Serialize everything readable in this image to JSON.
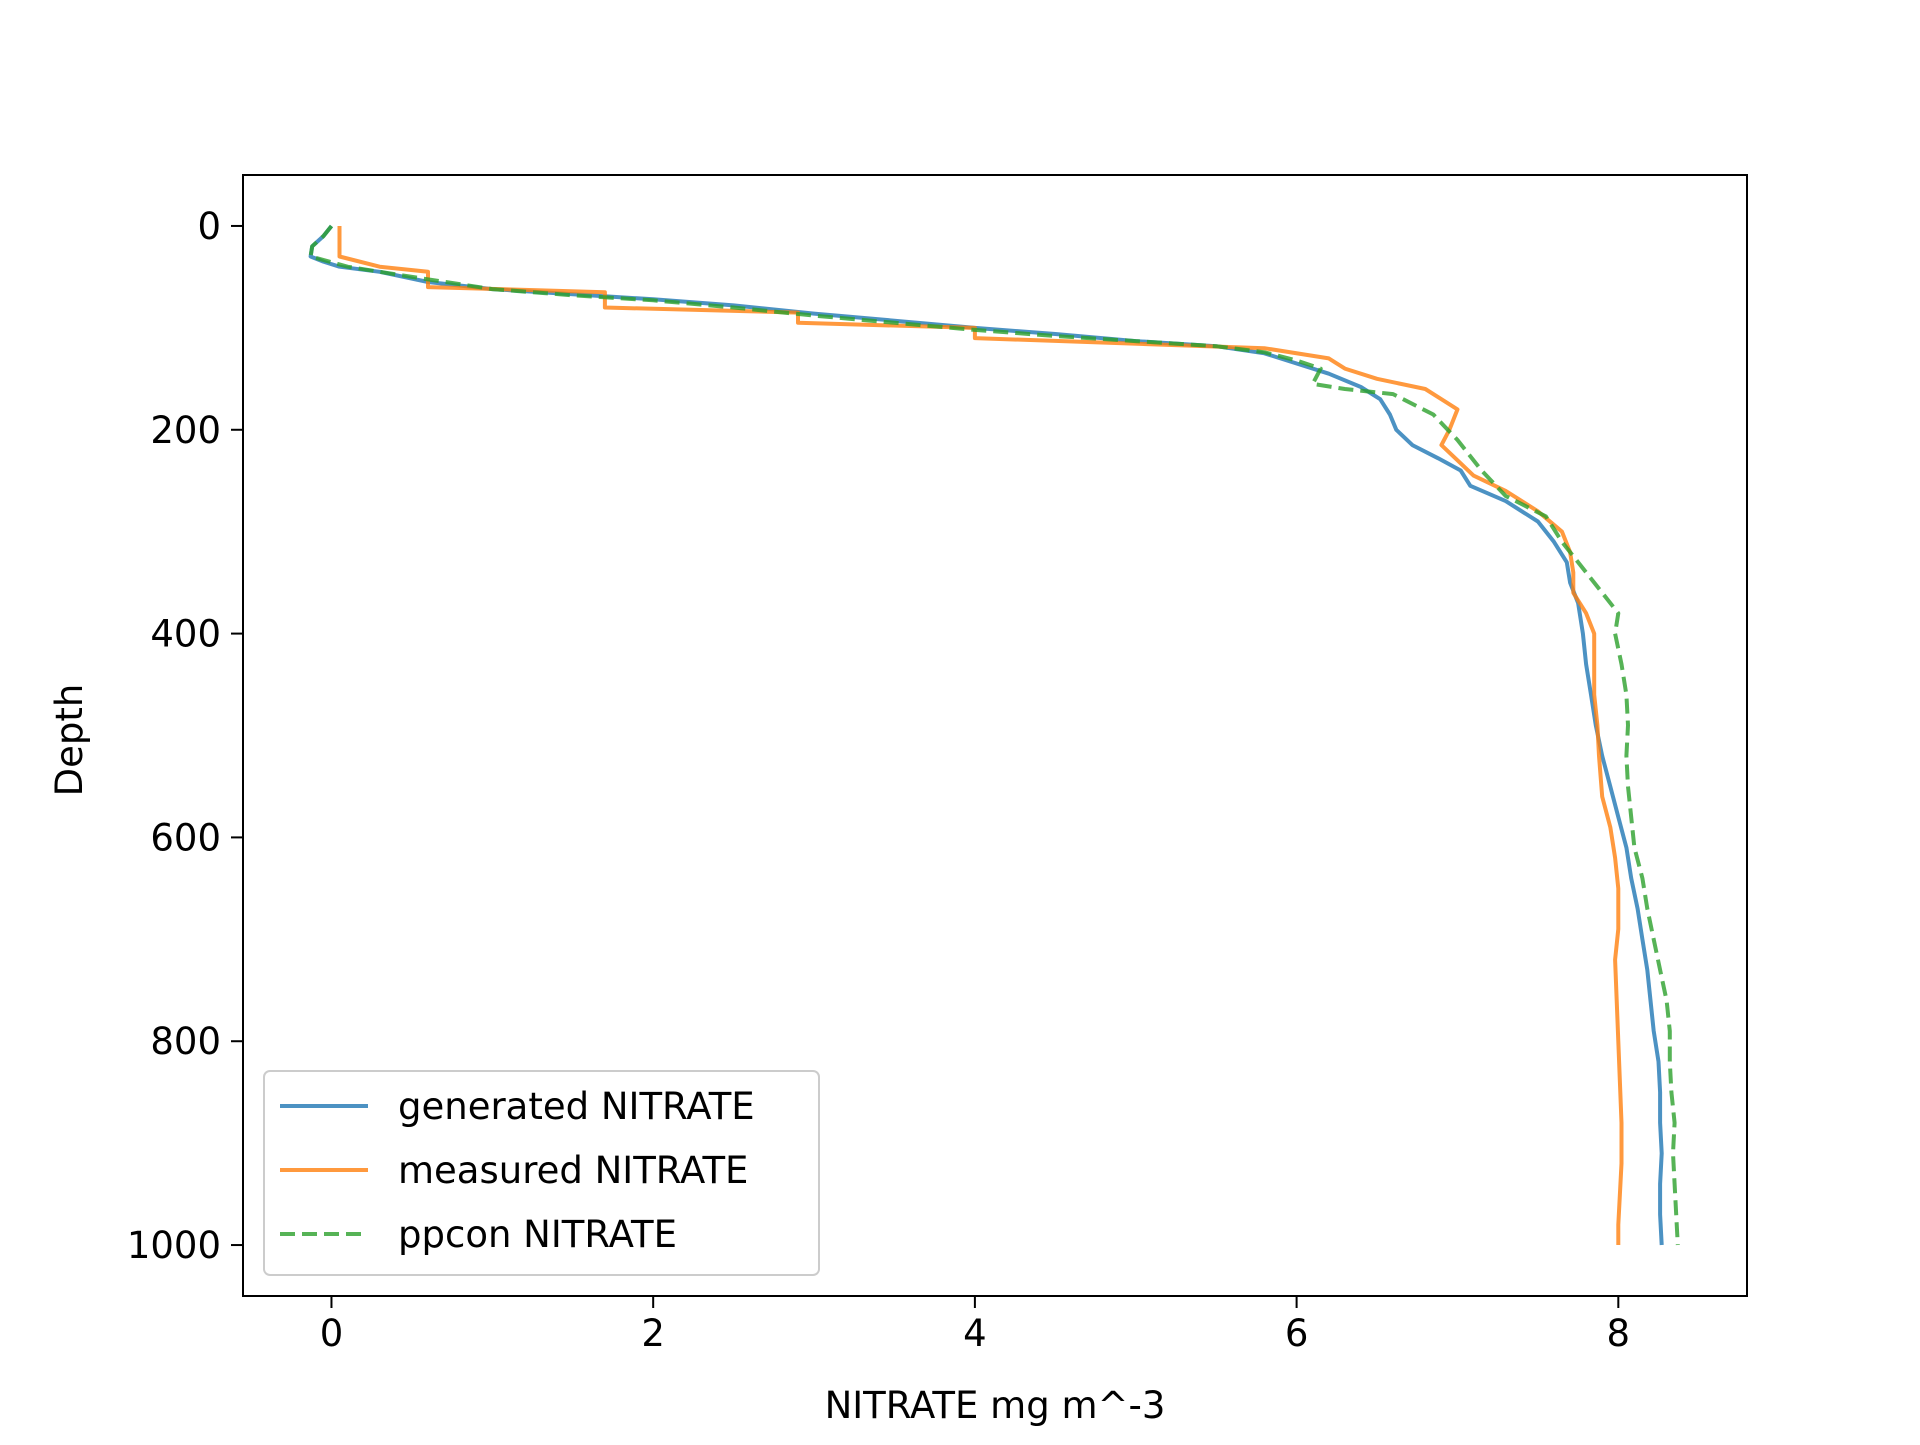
{
  "chart_data": {
    "type": "line",
    "title": "",
    "xlabel": "NITRATE mg m^-3",
    "ylabel": "Depth",
    "xlim": [
      -0.55,
      8.8
    ],
    "ylim": [
      1050,
      -50
    ],
    "y_inverted": true,
    "x_ticks": [
      0,
      2,
      4,
      6,
      8
    ],
    "y_ticks": [
      0,
      200,
      400,
      600,
      800,
      1000
    ],
    "x_tick_labels": [
      "0",
      "2",
      "4",
      "6",
      "8"
    ],
    "y_tick_labels": [
      "0",
      "200",
      "400",
      "600",
      "800",
      "1000"
    ],
    "grid": false,
    "legend_position": "lower-left",
    "series": [
      {
        "name": "generated NITRATE",
        "color": "#1f77b4",
        "style": "solid",
        "points": [
          [
            0.0,
            0
          ],
          [
            -0.05,
            10
          ],
          [
            -0.12,
            20
          ],
          [
            -0.13,
            30
          ],
          [
            -0.05,
            35
          ],
          [
            0.05,
            40
          ],
          [
            0.3,
            45
          ],
          [
            0.6,
            55
          ],
          [
            1.0,
            62
          ],
          [
            1.5,
            67
          ],
          [
            2.0,
            72
          ],
          [
            2.5,
            78
          ],
          [
            3.0,
            86
          ],
          [
            3.5,
            93
          ],
          [
            4.0,
            100
          ],
          [
            4.5,
            106
          ],
          [
            5.0,
            113
          ],
          [
            5.5,
            118
          ],
          [
            5.8,
            125
          ],
          [
            6.0,
            135
          ],
          [
            6.2,
            145
          ],
          [
            6.4,
            158
          ],
          [
            6.52,
            170
          ],
          [
            6.58,
            185
          ],
          [
            6.62,
            200
          ],
          [
            6.72,
            215
          ],
          [
            6.88,
            228
          ],
          [
            7.02,
            240
          ],
          [
            7.08,
            255
          ],
          [
            7.3,
            270
          ],
          [
            7.5,
            290
          ],
          [
            7.6,
            310
          ],
          [
            7.68,
            330
          ],
          [
            7.7,
            350
          ],
          [
            7.75,
            370
          ],
          [
            7.78,
            400
          ],
          [
            7.8,
            430
          ],
          [
            7.83,
            460
          ],
          [
            7.86,
            490
          ],
          [
            7.9,
            520
          ],
          [
            7.95,
            550
          ],
          [
            8.0,
            580
          ],
          [
            8.05,
            610
          ],
          [
            8.08,
            640
          ],
          [
            8.12,
            670
          ],
          [
            8.15,
            700
          ],
          [
            8.18,
            730
          ],
          [
            8.2,
            760
          ],
          [
            8.22,
            790
          ],
          [
            8.25,
            820
          ],
          [
            8.26,
            850
          ],
          [
            8.26,
            880
          ],
          [
            8.27,
            910
          ],
          [
            8.26,
            940
          ],
          [
            8.26,
            970
          ],
          [
            8.27,
            1000
          ]
        ]
      },
      {
        "name": "measured NITRATE",
        "color": "#ff7f0e",
        "style": "solid",
        "points": [
          [
            0.05,
            0
          ],
          [
            0.05,
            30
          ],
          [
            0.3,
            40
          ],
          [
            0.6,
            45
          ],
          [
            0.6,
            60
          ],
          [
            1.7,
            65
          ],
          [
            1.7,
            80
          ],
          [
            2.9,
            85
          ],
          [
            2.9,
            95
          ],
          [
            4.0,
            100
          ],
          [
            4.0,
            110
          ],
          [
            5.8,
            120
          ],
          [
            6.2,
            130
          ],
          [
            6.3,
            140
          ],
          [
            6.5,
            150
          ],
          [
            6.8,
            160
          ],
          [
            6.9,
            170
          ],
          [
            7.0,
            180
          ],
          [
            6.95,
            200
          ],
          [
            6.9,
            215
          ],
          [
            7.0,
            230
          ],
          [
            7.1,
            245
          ],
          [
            7.3,
            260
          ],
          [
            7.5,
            280
          ],
          [
            7.65,
            300
          ],
          [
            7.7,
            320
          ],
          [
            7.72,
            340
          ],
          [
            7.72,
            360
          ],
          [
            7.8,
            380
          ],
          [
            7.85,
            400
          ],
          [
            7.85,
            430
          ],
          [
            7.85,
            460
          ],
          [
            7.87,
            490
          ],
          [
            7.88,
            520
          ],
          [
            7.9,
            560
          ],
          [
            7.95,
            590
          ],
          [
            7.98,
            620
          ],
          [
            8.0,
            650
          ],
          [
            8.0,
            690
          ],
          [
            7.98,
            720
          ],
          [
            7.99,
            760
          ],
          [
            8.0,
            800
          ],
          [
            8.01,
            840
          ],
          [
            8.02,
            880
          ],
          [
            8.02,
            920
          ],
          [
            8.01,
            950
          ],
          [
            8.0,
            980
          ],
          [
            8.0,
            1000
          ]
        ]
      },
      {
        "name": "ppcon NITRATE",
        "color": "#2ca02c",
        "style": "dashed",
        "points": [
          [
            0.0,
            0
          ],
          [
            -0.05,
            10
          ],
          [
            -0.12,
            20
          ],
          [
            -0.13,
            30
          ],
          [
            0.1,
            40
          ],
          [
            0.5,
            50
          ],
          [
            1.0,
            62
          ],
          [
            1.5,
            68
          ],
          [
            2.0,
            73
          ],
          [
            2.5,
            80
          ],
          [
            3.0,
            88
          ],
          [
            3.5,
            95
          ],
          [
            4.0,
            102
          ],
          [
            4.5,
            108
          ],
          [
            5.0,
            113
          ],
          [
            5.5,
            118
          ],
          [
            5.8,
            124
          ],
          [
            6.0,
            132
          ],
          [
            6.15,
            140
          ],
          [
            6.1,
            155
          ],
          [
            6.3,
            160
          ],
          [
            6.6,
            165
          ],
          [
            6.85,
            185
          ],
          [
            7.0,
            210
          ],
          [
            7.15,
            240
          ],
          [
            7.3,
            265
          ],
          [
            7.55,
            285
          ],
          [
            7.65,
            310
          ],
          [
            7.7,
            320
          ],
          [
            7.8,
            340
          ],
          [
            7.9,
            360
          ],
          [
            8.0,
            380
          ],
          [
            7.98,
            400
          ],
          [
            8.02,
            430
          ],
          [
            8.05,
            460
          ],
          [
            8.06,
            490
          ],
          [
            8.05,
            520
          ],
          [
            8.06,
            550
          ],
          [
            8.08,
            580
          ],
          [
            8.1,
            610
          ],
          [
            8.15,
            640
          ],
          [
            8.18,
            670
          ],
          [
            8.22,
            700
          ],
          [
            8.26,
            730
          ],
          [
            8.3,
            760
          ],
          [
            8.32,
            790
          ],
          [
            8.32,
            820
          ],
          [
            8.33,
            850
          ],
          [
            8.35,
            880
          ],
          [
            8.34,
            910
          ],
          [
            8.35,
            940
          ],
          [
            8.36,
            970
          ],
          [
            8.37,
            1000
          ]
        ]
      }
    ]
  }
}
